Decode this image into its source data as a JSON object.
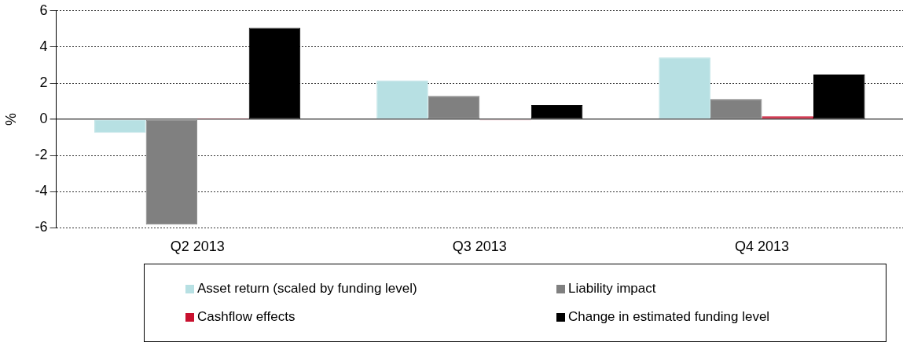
{
  "chart_data": {
    "type": "bar",
    "ylabel": "%",
    "categories": [
      "Q2 2013",
      "Q3 2013",
      "Q4 2013"
    ],
    "series": [
      {
        "name": "Asset return (scaled by funding level)",
        "color": "#b7e0e3",
        "values": [
          -0.74,
          2.15,
          3.42
        ]
      },
      {
        "name": "Liability impact",
        "color": "#808080",
        "values": [
          -5.82,
          1.29,
          1.12
        ]
      },
      {
        "name": "Cashflow effects",
        "color": "#c8102e",
        "values": [
          0.02,
          -0.05,
          0.17
        ]
      },
      {
        "name": "Change in estimated funding level",
        "color": "#000000",
        "values": [
          5.06,
          0.78,
          2.48
        ]
      }
    ],
    "ylim": [
      -6,
      6
    ],
    "yticks": [
      -6,
      -4,
      -2,
      0,
      2,
      4,
      6
    ],
    "grid": "y",
    "legend": "bottom"
  }
}
